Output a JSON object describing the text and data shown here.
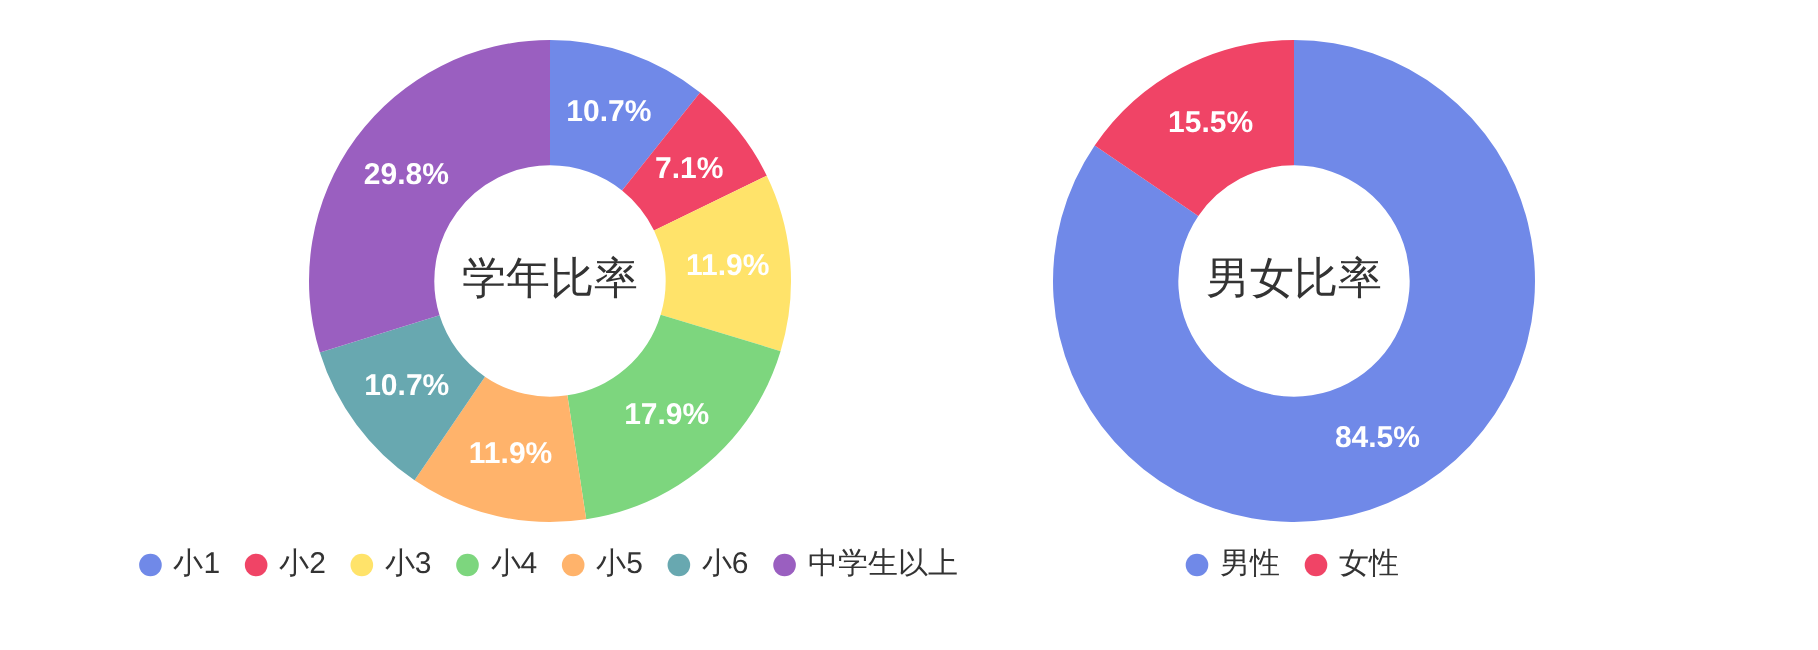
{
  "chart_data": [
    {
      "type": "donut",
      "title": "学年比率",
      "categories": [
        "小1",
        "小2",
        "小3",
        "小4",
        "小5",
        "小6",
        "中学生以上"
      ],
      "values": [
        10.7,
        7.1,
        11.9,
        17.9,
        11.9,
        10.7,
        29.8
      ],
      "colors": [
        "#7089e8",
        "#f04466",
        "#ffe36a",
        "#7dd67e",
        "#ffb36b",
        "#68a8b0",
        "#9a5fc0"
      ],
      "value_labels": [
        "10.7%",
        "7.1%",
        "11.9%",
        "17.9%",
        "11.9%",
        "10.7%",
        "29.8%"
      ],
      "legend": "bottom"
    },
    {
      "type": "donut",
      "title": "男女比率",
      "categories": [
        "男性",
        "女性"
      ],
      "values": [
        84.5,
        15.5
      ],
      "colors": [
        "#7089e8",
        "#f04466"
      ],
      "value_labels": [
        "84.5%",
        "15.5%"
      ],
      "legend": "bottom"
    }
  ]
}
